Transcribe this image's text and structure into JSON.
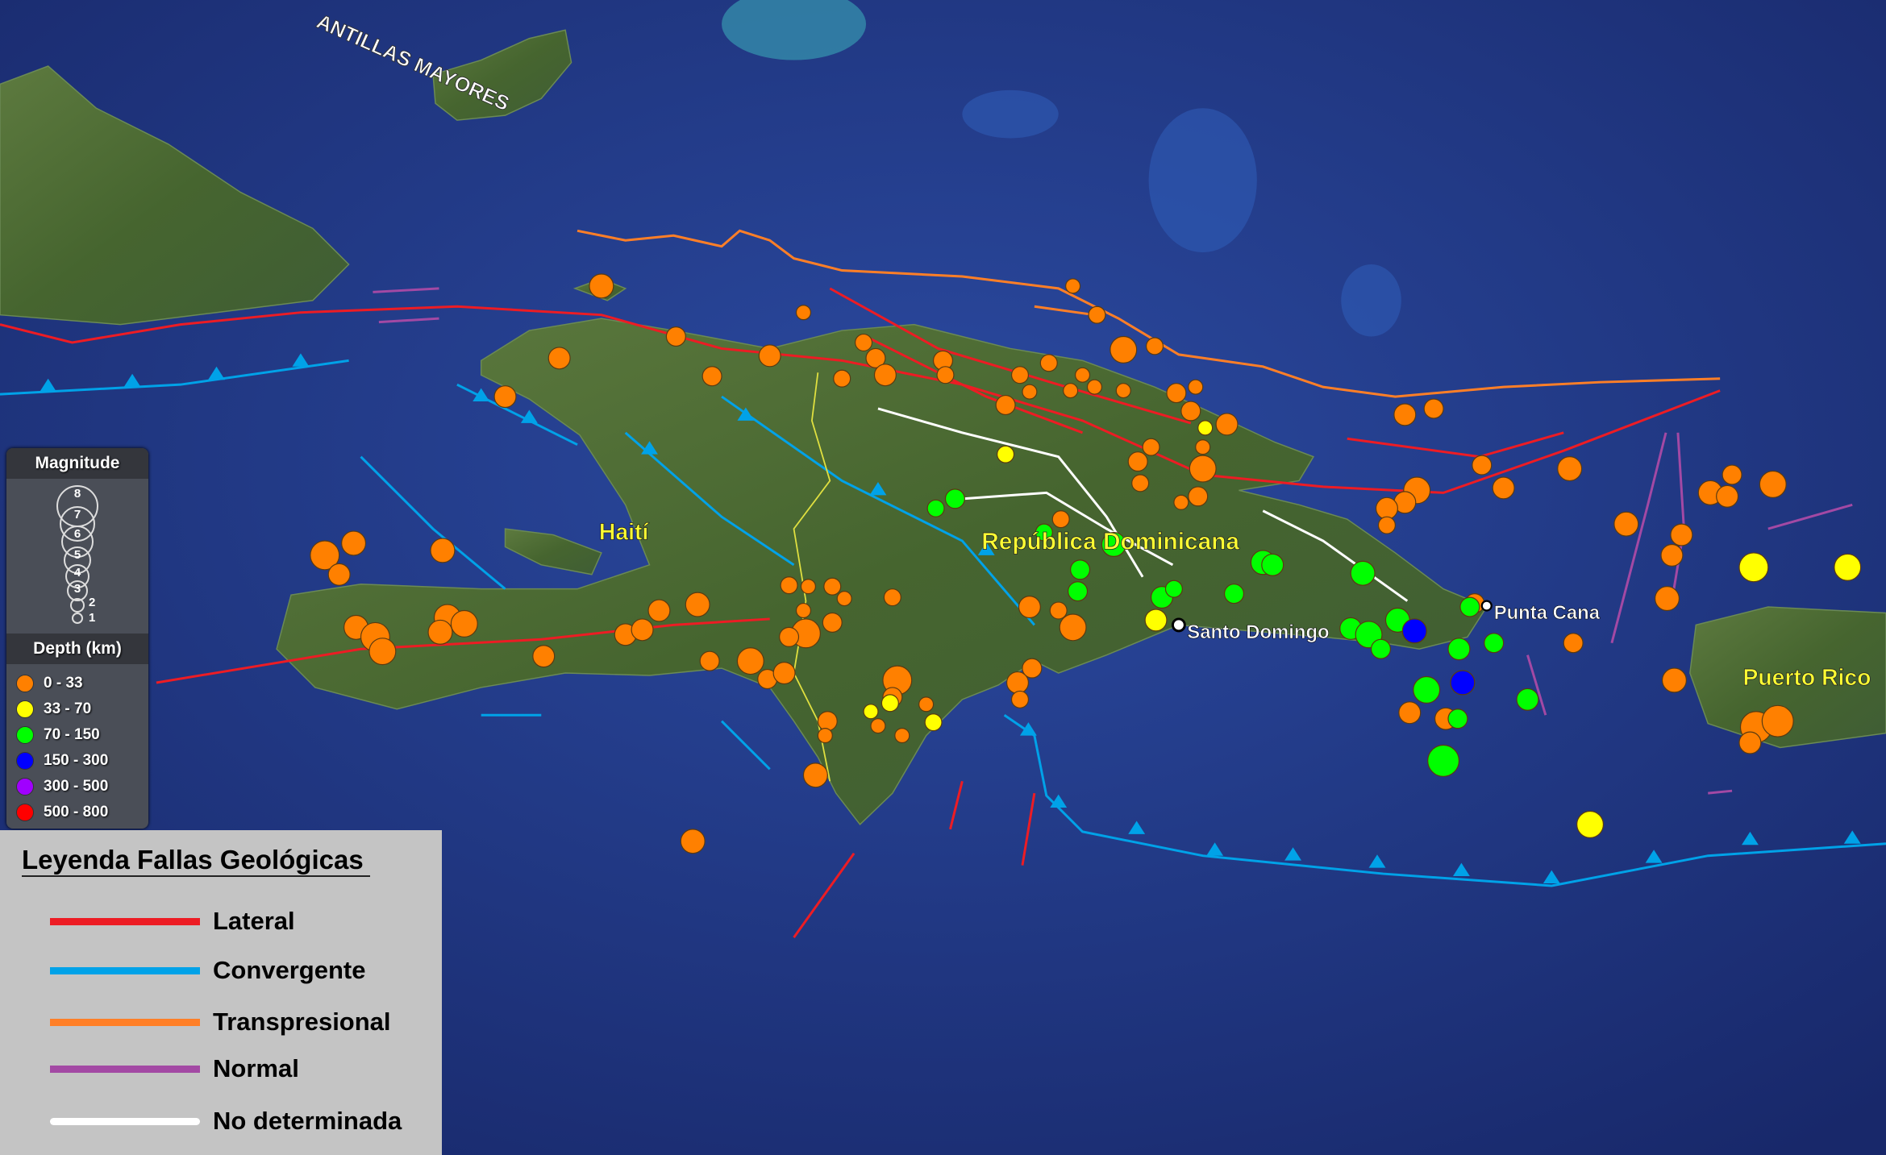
{
  "map": {
    "labels": {
      "region": "ANTILLAS MAYORES",
      "haiti": "Haití",
      "dominican_republic": "República Dominicana",
      "santo_domingo": "Santo Domingo",
      "punta_cana": "Punta Cana",
      "puerto_rico": "Puerto Rico"
    },
    "colors": {
      "ocean": "#1f3579",
      "land": "#4d6b35",
      "country_label": "#ffff33"
    }
  },
  "magnitude_legend": {
    "title": "Magnitude",
    "levels": [
      "8",
      "7",
      "6",
      "5",
      "4",
      "3",
      "2",
      "1"
    ]
  },
  "depth_legend": {
    "title": "Depth (km)",
    "classes": [
      {
        "label": "0 - 33",
        "color": "#ff8000"
      },
      {
        "label": "33 - 70",
        "color": "#ffff00"
      },
      {
        "label": "70 - 150",
        "color": "#00ff00"
      },
      {
        "label": "150 - 300",
        "color": "#0000ff"
      },
      {
        "label": "300 - 500",
        "color": "#a000ff"
      },
      {
        "label": "500 - 800",
        "color": "#ff0000"
      }
    ]
  },
  "fault_legend": {
    "title": "Leyenda Fallas Geológicas",
    "items": [
      {
        "label": "Lateral",
        "color": "#ed1c24"
      },
      {
        "label": "Convergente",
        "color": "#00a2e8"
      },
      {
        "label": "Transpresional",
        "color": "#ff7f27"
      },
      {
        "label": "Normal",
        "color": "#a349a4"
      },
      {
        "label": "No determinada",
        "color": "#ffffff"
      }
    ]
  }
}
